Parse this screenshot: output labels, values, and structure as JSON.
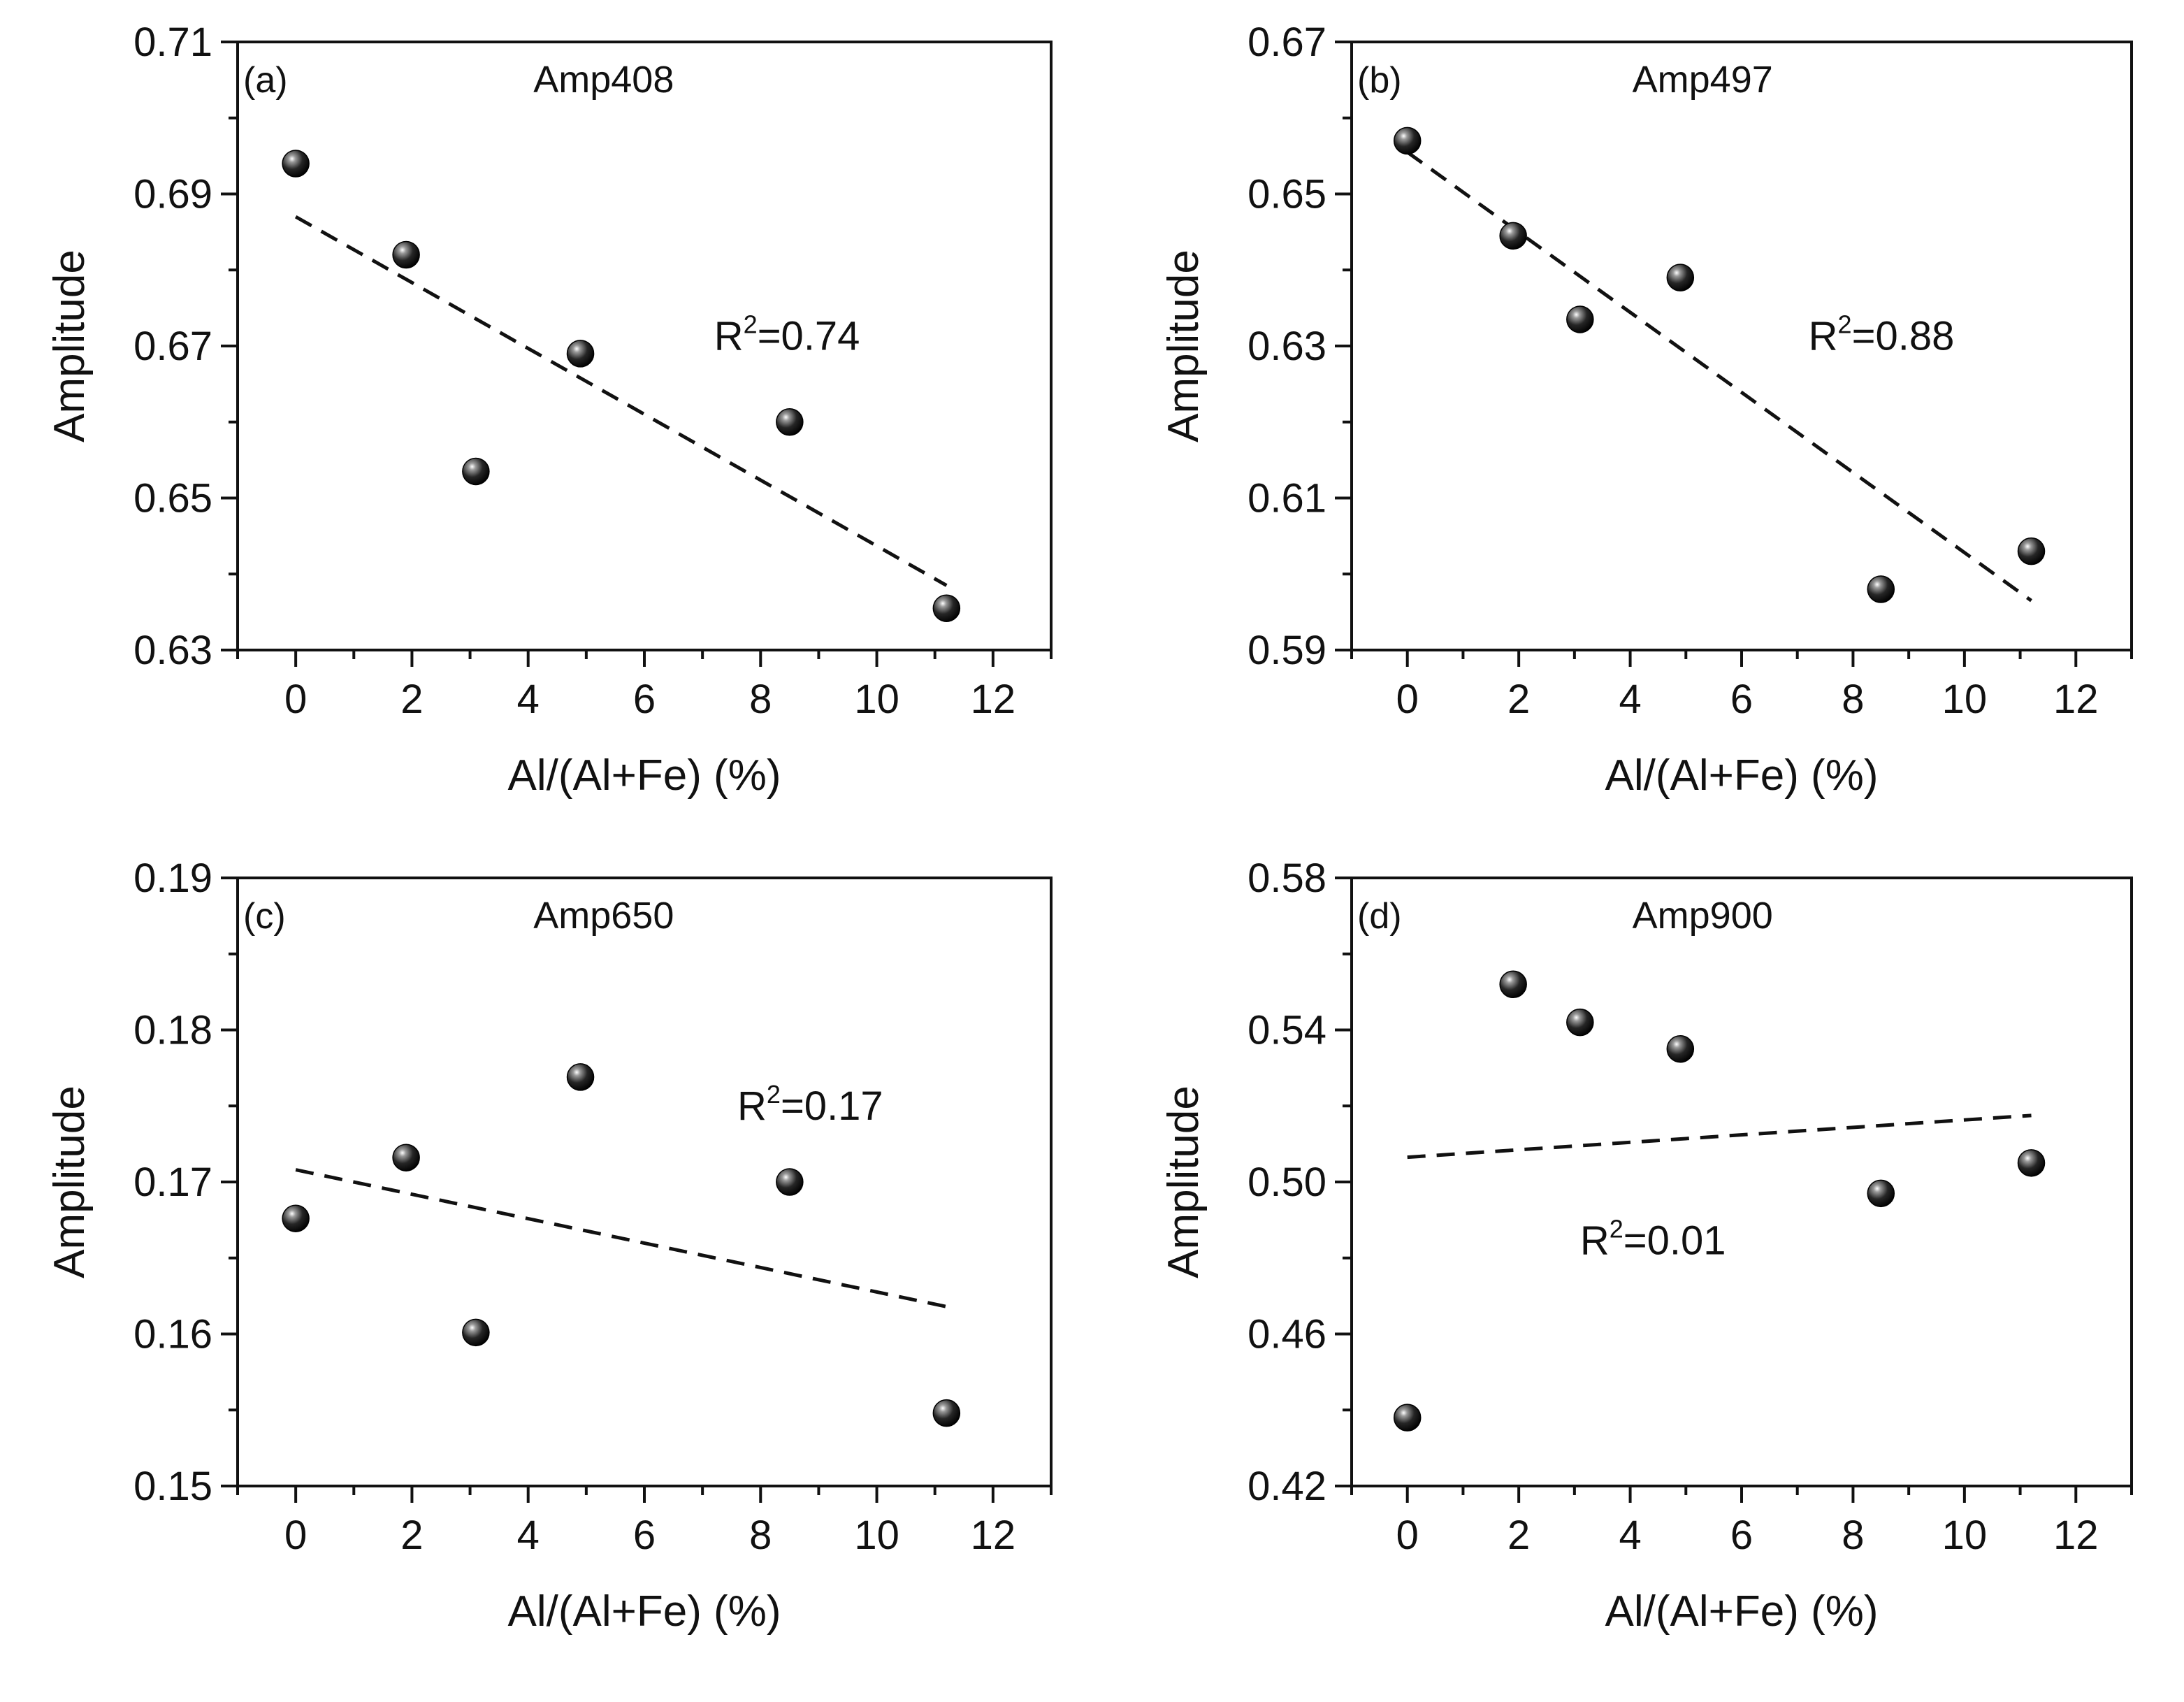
{
  "chart_data": [
    {
      "type": "scatter",
      "panel": "(a)",
      "title": "Amp408",
      "xlabel": "Al/(Al+Fe) (%)",
      "ylabel": "Amplitude",
      "xlim": [
        -1,
        13
      ],
      "ylim": [
        0.63,
        0.71
      ],
      "xticks": [
        0,
        2,
        4,
        6,
        8,
        10,
        12
      ],
      "yticks": [
        0.63,
        0.65,
        0.67,
        0.69,
        0.71
      ],
      "ytick_labels": [
        "0.63",
        "0.65",
        "0.67",
        "0.69",
        "0.71"
      ],
      "x": [
        0,
        1.9,
        3.1,
        4.9,
        8.5,
        11.2
      ],
      "y": [
        0.694,
        0.682,
        0.6535,
        0.669,
        0.66,
        0.6355
      ],
      "fit_line": {
        "x": [
          0,
          11.2
        ],
        "y": [
          0.687,
          0.6385
        ]
      },
      "r2_label": "0.74",
      "r2_pos": [
        7.2,
        0.6695
      ]
    },
    {
      "type": "scatter",
      "panel": "(b)",
      "title": "Amp497",
      "xlabel": "Al/(Al+Fe) (%)",
      "ylabel": "Amplitude",
      "xlim": [
        -1,
        13
      ],
      "ylim": [
        0.59,
        0.67
      ],
      "xticks": [
        0,
        2,
        4,
        6,
        8,
        10,
        12
      ],
      "yticks": [
        0.59,
        0.61,
        0.63,
        0.65,
        0.67
      ],
      "ytick_labels": [
        "0.59",
        "0.61",
        "0.63",
        "0.65",
        "0.67"
      ],
      "x": [
        0,
        1.9,
        3.1,
        4.9,
        8.5,
        11.2
      ],
      "y": [
        0.657,
        0.6445,
        0.6335,
        0.639,
        0.598,
        0.603
      ],
      "fit_line": {
        "x": [
          0,
          11.2
        ],
        "y": [
          0.6555,
          0.5965
        ]
      },
      "r2_label": "0.88",
      "r2_pos": [
        7.2,
        0.6295
      ]
    },
    {
      "type": "scatter",
      "panel": "(c)",
      "title": "Amp650",
      "xlabel": "Al/(Al+Fe) (%)",
      "ylabel": "Amplitude",
      "xlim": [
        -1,
        13
      ],
      "ylim": [
        0.15,
        0.19
      ],
      "xticks": [
        0,
        2,
        4,
        6,
        8,
        10,
        12
      ],
      "yticks": [
        0.15,
        0.16,
        0.17,
        0.18,
        0.19
      ],
      "ytick_labels": [
        "0.15",
        "0.16",
        "0.17",
        "0.18",
        "0.19"
      ],
      "x": [
        0,
        1.9,
        3.1,
        4.9,
        8.5,
        11.2
      ],
      "y": [
        0.1676,
        0.1716,
        0.1601,
        0.1769,
        0.17,
        0.1548
      ],
      "fit_line": {
        "x": [
          0,
          11.2
        ],
        "y": [
          0.1708,
          0.1618
        ]
      },
      "r2_label": "0.17",
      "r2_pos": [
        7.6,
        0.1741
      ]
    },
    {
      "type": "scatter",
      "panel": "(d)",
      "title": "Amp900",
      "xlabel": "Al/(Al+Fe) (%)",
      "ylabel": "Amplitude",
      "xlim": [
        -1,
        13
      ],
      "ylim": [
        0.42,
        0.58
      ],
      "xticks": [
        0,
        2,
        4,
        6,
        8,
        10,
        12
      ],
      "yticks": [
        0.42,
        0.46,
        0.5,
        0.54,
        0.58
      ],
      "ytick_labels": [
        "0.42",
        "0.46",
        "0.50",
        "0.54",
        "0.58"
      ],
      "x": [
        0,
        1.9,
        3.1,
        4.9,
        8.5,
        11.2
      ],
      "y": [
        0.438,
        0.552,
        0.542,
        0.535,
        0.497,
        0.505
      ],
      "fit_line": {
        "x": [
          0,
          11.2
        ],
        "y": [
          0.5065,
          0.5175
        ]
      },
      "r2_label": "0.01",
      "r2_pos": [
        3.1,
        0.481
      ]
    }
  ]
}
